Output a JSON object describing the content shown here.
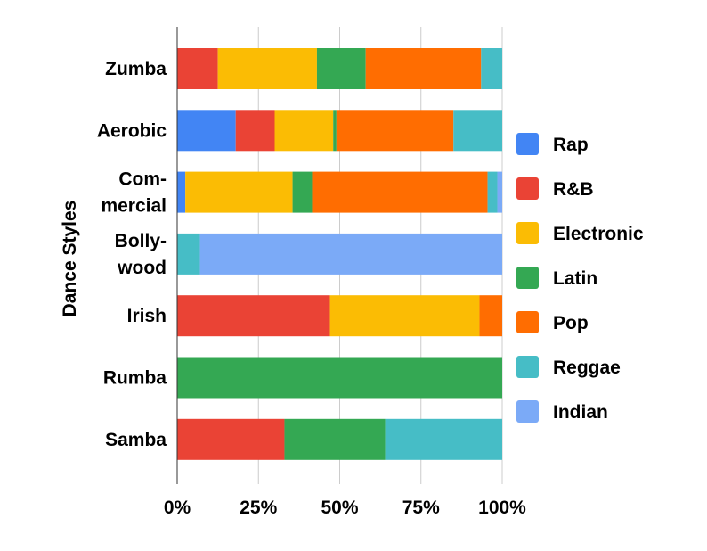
{
  "chart_data": {
    "type": "bar",
    "orientation": "horizontal",
    "stacked": "percent",
    "ylabel": "Dance Styles",
    "xlabel": "",
    "xlim": [
      0,
      100
    ],
    "x_ticks": [
      "0%",
      "25%",
      "50%",
      "75%",
      "100%"
    ],
    "x_tick_values": [
      0,
      25,
      50,
      75,
      100
    ],
    "grid": true,
    "legend_position": "right",
    "categories": [
      [
        "Zumba"
      ],
      [
        "Aerobic"
      ],
      [
        "Com-",
        "mercial"
      ],
      [
        "Bolly-",
        "wood"
      ],
      [
        "Irish"
      ],
      [
        "Rumba"
      ],
      [
        "Samba"
      ]
    ],
    "series": [
      {
        "name": "Rap",
        "color": "#4285f4",
        "values": [
          0,
          18,
          2.5,
          0,
          0,
          0,
          0
        ]
      },
      {
        "name": "R&B",
        "color": "#ea4335",
        "values": [
          12.5,
          12,
          0,
          0,
          47,
          0,
          33
        ]
      },
      {
        "name": "Electronic",
        "color": "#fbbc04",
        "values": [
          30.5,
          18,
          33,
          0,
          46,
          0,
          0
        ]
      },
      {
        "name": "Latin",
        "color": "#34a853",
        "values": [
          15,
          1,
          6,
          0,
          0,
          100,
          31
        ]
      },
      {
        "name": "Pop",
        "color": "#ff6d01",
        "values": [
          35.5,
          36,
          54,
          0,
          7,
          0,
          0
        ]
      },
      {
        "name": "Reggae",
        "color": "#46bdc6",
        "values": [
          6.5,
          15,
          3,
          7,
          0,
          0,
          36
        ]
      },
      {
        "name": "Indian",
        "color": "#7baaf7",
        "values": [
          0,
          0,
          1.5,
          93,
          0,
          0,
          0
        ]
      }
    ]
  }
}
